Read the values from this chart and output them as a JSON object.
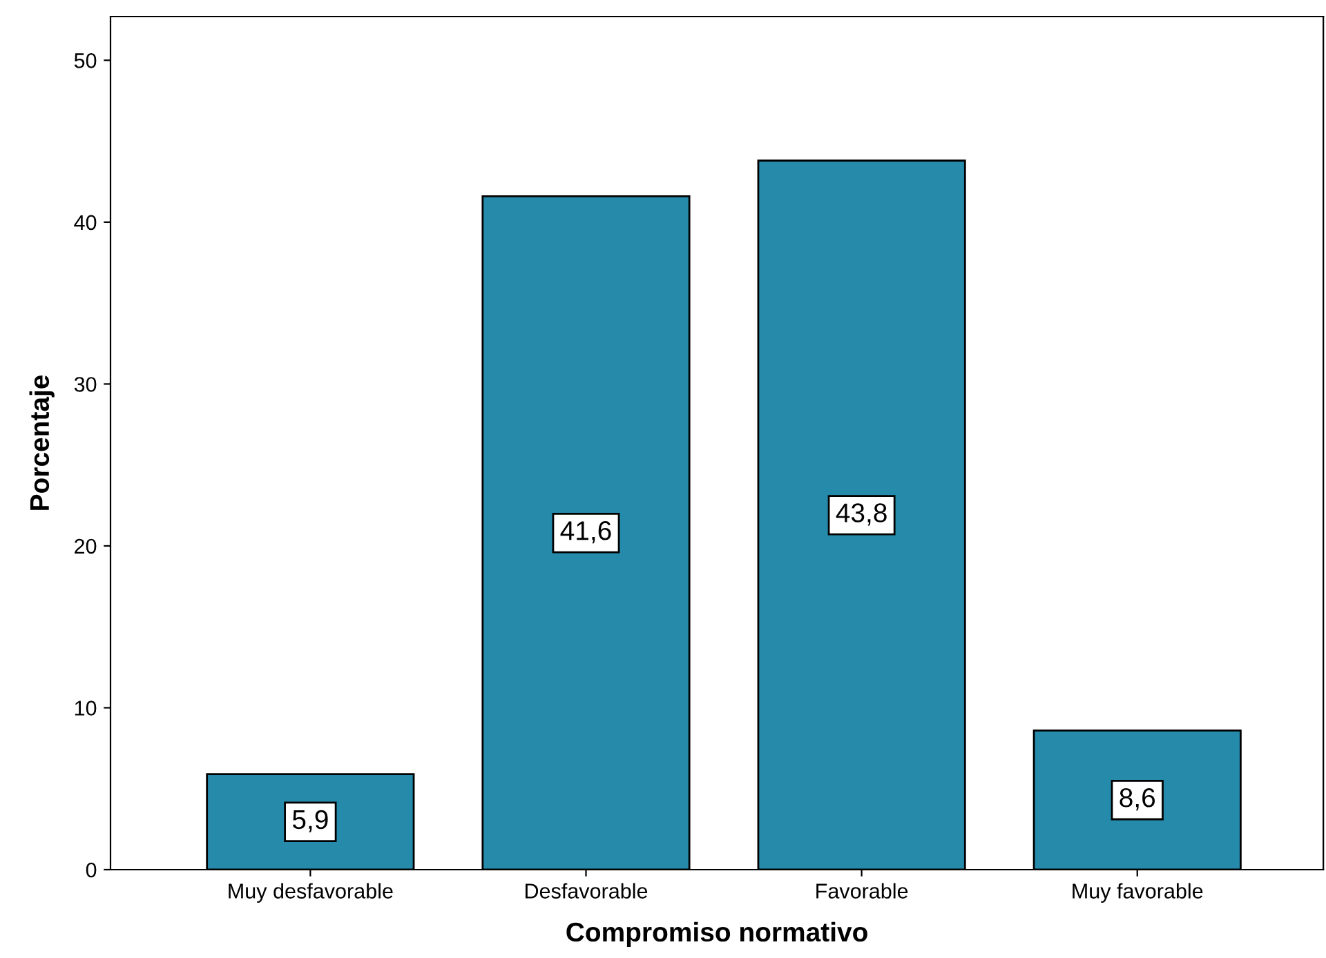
{
  "chart_data": {
    "type": "bar",
    "xlabel": "Compromiso normativo",
    "ylabel": "Porcentaje",
    "categories": [
      "Muy desfavorable",
      "Desfavorable",
      "Favorable",
      "Muy favorable"
    ],
    "values": [
      5.9,
      41.6,
      43.8,
      8.6
    ],
    "value_labels": [
      "5,9",
      "41,6",
      "43,8",
      "8,6"
    ],
    "color": "#268aab",
    "ylim": [
      0,
      52.7
    ],
    "yticks": [
      0,
      10,
      20,
      30,
      40,
      50
    ],
    "grid": false,
    "legend": false
  }
}
